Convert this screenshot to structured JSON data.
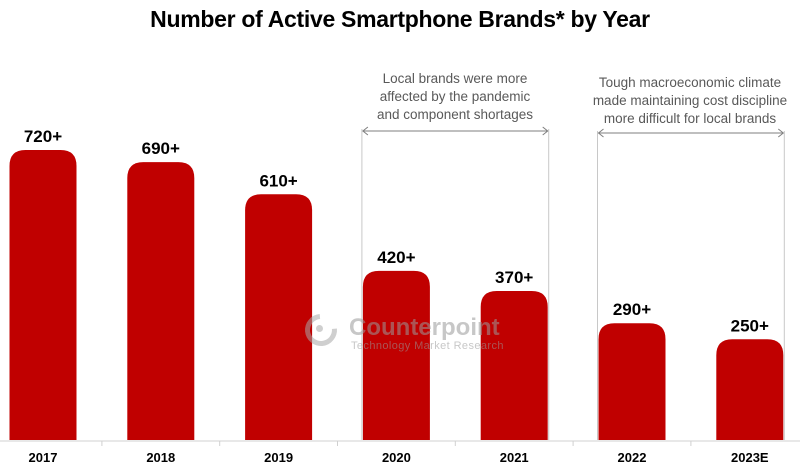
{
  "chart_data": {
    "type": "bar",
    "title": "Number of Active Smartphone Brands* by Year",
    "xlabel": "",
    "ylabel": "",
    "categories": [
      "2017",
      "2018",
      "2019",
      "2020",
      "2021",
      "2022",
      "2023E"
    ],
    "values": [
      720,
      690,
      610,
      420,
      370,
      290,
      250
    ],
    "data_labels": [
      "720+",
      "690+",
      "610+",
      "420+",
      "370+",
      "290+",
      "250+"
    ],
    "ylim": [
      0,
      720
    ],
    "grid": false,
    "legend": "none",
    "bar_color": "#c00000",
    "annotations": [
      {
        "text": "Local brands were more affected by the pandemic and component shortages",
        "lines": [
          "Local brands were more",
          "affected by the pandemic",
          "and component shortages"
        ],
        "span": [
          "2020",
          "2021"
        ]
      },
      {
        "text": "Tough macroeconomic climate made maintaining cost discipline more difficult for local brands",
        "lines": [
          "Tough macroeconomic climate",
          "made maintaining cost discipline",
          "more difficult for local brands"
        ],
        "span": [
          "2022",
          "2023E"
        ]
      }
    ]
  },
  "watermark": {
    "name": "Counterpoint",
    "tagline": "Technology Market Research"
  }
}
